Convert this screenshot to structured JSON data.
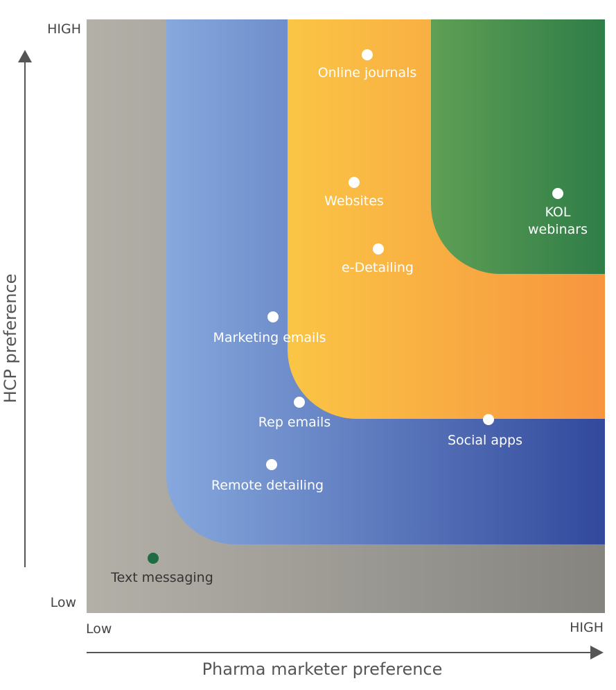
{
  "axes": {
    "y_title": "HCP preference",
    "x_title": "Pharma marketer preference",
    "y_high": "HIGH",
    "y_low": "Low",
    "x_low": "Low",
    "x_high": "HIGH"
  },
  "colors": {
    "zone_gray": [
      "#b3b0a8",
      "#85847f"
    ],
    "zone_blue": [
      "#86a8dd",
      "#32499c"
    ],
    "zone_orange": [
      "#fac545",
      "#f7953f"
    ],
    "zone_green": [
      "#5f9f55",
      "#2f7d48"
    ],
    "point_default": "#ffffff",
    "point_highlight": "#1f6b43",
    "label_dark": "#333333",
    "label_light": "#ffffff"
  },
  "zones": [
    "gray",
    "blue",
    "orange",
    "green"
  ],
  "points": [
    {
      "label_lines": [
        "Online journals"
      ],
      "fill": "white"
    },
    {
      "label_lines": [
        "Websites"
      ],
      "fill": "white"
    },
    {
      "label_lines": [
        "KOL",
        "webinars"
      ],
      "fill": "white"
    },
    {
      "label_lines": [
        "e-Detailing"
      ],
      "fill": "white"
    },
    {
      "label_lines": [
        "Marketing emails"
      ],
      "fill": "white"
    },
    {
      "label_lines": [
        "Rep emails"
      ],
      "fill": "white"
    },
    {
      "label_lines": [
        "Social apps"
      ],
      "fill": "white"
    },
    {
      "label_lines": [
        "Remote detailing"
      ],
      "fill": "white"
    },
    {
      "label_lines": [
        "Text messaging"
      ],
      "fill": "highlight"
    }
  ]
}
